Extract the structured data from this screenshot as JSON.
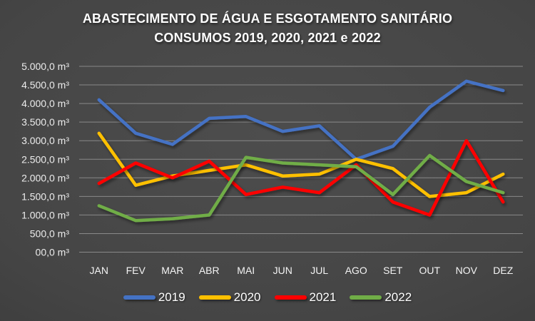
{
  "title": {
    "line1": "ABASTECIMENTO DE ÁGUA E ESGOTAMENTO SANITÁRIO",
    "line2": "CONSUMOS 2019, 2020, 2021 e 2022"
  },
  "chart_data": {
    "type": "line",
    "title": "ABASTECIMENTO DE ÁGUA E ESGOTAMENTO SANITÁRIO CONSUMOS 2019, 2020, 2021 e 2022",
    "unit": "m³",
    "categories": [
      "JAN",
      "FEV",
      "MAR",
      "ABR",
      "MAI",
      "JUN",
      "JUL",
      "AGO",
      "SET",
      "OUT",
      "NOV",
      "DEZ"
    ],
    "series": [
      {
        "name": "2019",
        "color": "#4472C4",
        "values": [
          4100,
          3200,
          2900,
          3600,
          3650,
          3250,
          3400,
          2500,
          2850,
          3900,
          4600,
          4350
        ]
      },
      {
        "name": "2020",
        "color": "#FFC000",
        "values": [
          3200,
          1800,
          2050,
          2200,
          2350,
          2050,
          2100,
          2500,
          2250,
          1500,
          1600,
          2100
        ]
      },
      {
        "name": "2021",
        "color": "#FF0000",
        "values": [
          1850,
          2400,
          2000,
          2450,
          1550,
          1750,
          1600,
          2350,
          1350,
          1000,
          3000,
          1350
        ]
      },
      {
        "name": "2022",
        "color": "#70AD47",
        "values": [
          1250,
          850,
          900,
          1000,
          2550,
          2400,
          2350,
          2300,
          1550,
          2600,
          1900,
          1600
        ]
      }
    ],
    "ylim": [
      0,
      5000
    ],
    "y_ticks": [
      {
        "value": 5000,
        "label": "5.000,0 m³"
      },
      {
        "value": 4500,
        "label": "4.500,0 m³"
      },
      {
        "value": 4000,
        "label": "4.000,0 m³"
      },
      {
        "value": 3500,
        "label": "3.500,0 m³"
      },
      {
        "value": 3000,
        "label": "3.000,0 m³"
      },
      {
        "value": 2500,
        "label": "2.500,0 m³"
      },
      {
        "value": 2000,
        "label": "2.000,0 m³"
      },
      {
        "value": 1500,
        "label": "1.500,0 m³"
      },
      {
        "value": 1000,
        "label": "1.000,0 m³"
      },
      {
        "value": 500,
        "label": "500,0 m³"
      },
      {
        "value": 0,
        "label": "00,0 m³"
      }
    ],
    "grid": true,
    "legend_position": "bottom"
  },
  "colors": {
    "background_center": "#4d4d4d",
    "background_edge": "#2b2b2b",
    "gridline": "#9a9a9a",
    "text": "#ffffff",
    "series_2019": "#4472C4",
    "series_2020": "#FFC000",
    "series_2021": "#FF0000",
    "series_2022": "#70AD47"
  }
}
